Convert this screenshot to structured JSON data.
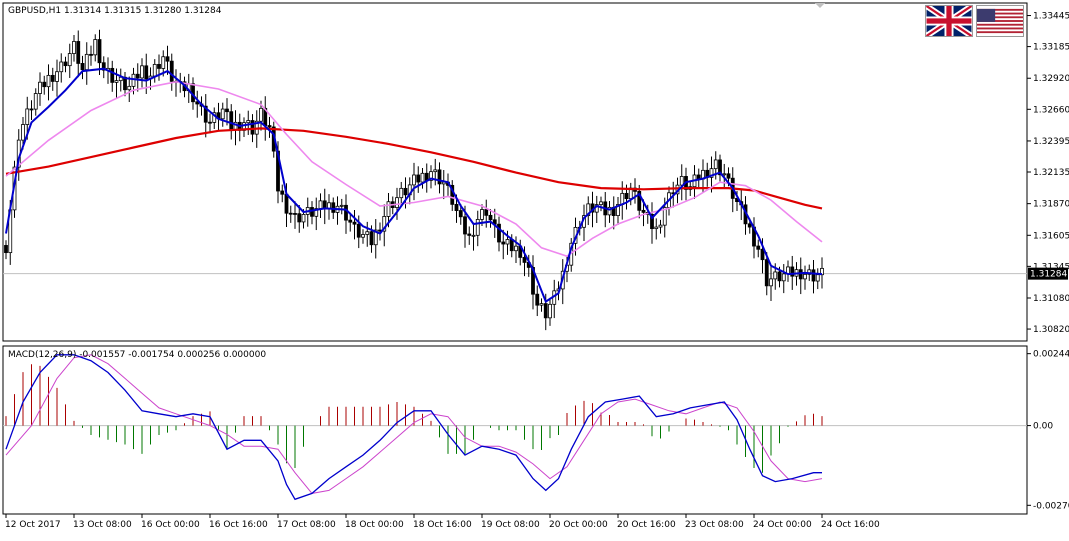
{
  "chart_data": [
    {
      "type": "candlestick",
      "title": "GBPUSD,H1  1.31314 1.31315 1.31280 1.31284",
      "symbol": "GBPUSD",
      "timeframe": "H1",
      "ohlc_header": {
        "open": 1.31314,
        "high": 1.31315,
        "low": 1.3128,
        "close": 1.31284
      },
      "current_price": "1.31284",
      "price_axis_ticks": [
        "1.33445",
        "1.33185",
        "1.32920",
        "1.32660",
        "1.32395",
        "1.32135",
        "1.31870",
        "1.31605",
        "1.31345",
        "1.31080",
        "1.30820"
      ],
      "ylim": [
        1.3072,
        1.3355
      ],
      "x_tick_labels": [
        "12 Oct 2017",
        "13 Oct 08:00",
        "16 Oct 00:00",
        "16 Oct 16:00",
        "17 Oct 08:00",
        "18 Oct 00:00",
        "18 Oct 16:00",
        "19 Oct 08:00",
        "20 Oct 00:00",
        "20 Oct 16:00",
        "23 Oct 08:00",
        "24 Oct 00:00",
        "24 Oct 16:00"
      ],
      "series_colors": {
        "fast_ma": "#0000cc",
        "medium_ma": "#ee88ee",
        "slow_ma": "#dd0000",
        "candle": "#000000"
      },
      "close_path": [
        [
          0,
          1.3152
        ],
        [
          3,
          1.3245
        ],
        [
          7,
          1.3278
        ],
        [
          10,
          1.3292
        ],
        [
          13,
          1.3302
        ],
        [
          16,
          1.3318
        ],
        [
          18,
          1.3298
        ],
        [
          21,
          1.3322
        ],
        [
          23,
          1.33
        ],
        [
          26,
          1.329
        ],
        [
          29,
          1.3284
        ],
        [
          32,
          1.33
        ],
        [
          34,
          1.3295
        ],
        [
          37,
          1.331
        ],
        [
          39,
          1.3293
        ],
        [
          41,
          1.3283
        ],
        [
          43,
          1.3285
        ],
        [
          46,
          1.3265
        ],
        [
          48,
          1.3255
        ],
        [
          51,
          1.3265
        ],
        [
          53,
          1.3251
        ],
        [
          56,
          1.3256
        ],
        [
          58,
          1.325
        ],
        [
          60,
          1.3262
        ],
        [
          62,
          1.325
        ],
        [
          64,
          1.32
        ],
        [
          66,
          1.3185
        ],
        [
          68,
          1.3175
        ],
        [
          70,
          1.3178
        ],
        [
          72,
          1.318
        ],
        [
          75,
          1.3185
        ],
        [
          78,
          1.3186
        ],
        [
          80,
          1.3178
        ],
        [
          82,
          1.3165
        ],
        [
          84,
          1.316
        ],
        [
          86,
          1.3155
        ],
        [
          88,
          1.317
        ],
        [
          90,
          1.3185
        ],
        [
          92,
          1.3192
        ],
        [
          94,
          1.3198
        ],
        [
          96,
          1.3205
        ],
        [
          98,
          1.321
        ],
        [
          100,
          1.3215
        ],
        [
          103,
          1.3205
        ],
        [
          105,
          1.319
        ],
        [
          107,
          1.317
        ],
        [
          109,
          1.3158
        ],
        [
          111,
          1.3175
        ],
        [
          113,
          1.3182
        ],
        [
          115,
          1.3165
        ],
        [
          117,
          1.3152
        ],
        [
          119,
          1.315
        ],
        [
          121,
          1.3148
        ],
        [
          123,
          1.313
        ],
        [
          125,
          1.3102
        ],
        [
          127,
          1.3095
        ],
        [
          129,
          1.3108
        ],
        [
          131,
          1.3128
        ],
        [
          133,
          1.3155
        ],
        [
          135,
          1.3172
        ],
        [
          137,
          1.3182
        ],
        [
          139,
          1.3185
        ],
        [
          141,
          1.318
        ],
        [
          143,
          1.3183
        ],
        [
          145,
          1.3192
        ],
        [
          147,
          1.32
        ],
        [
          149,
          1.3185
        ],
        [
          151,
          1.3172
        ],
        [
          153,
          1.3165
        ],
        [
          155,
          1.3185
        ],
        [
          157,
          1.32
        ],
        [
          159,
          1.3205
        ],
        [
          161,
          1.32
        ],
        [
          163,
          1.321
        ],
        [
          165,
          1.3215
        ],
        [
          167,
          1.322
        ],
        [
          169,
          1.3212
        ],
        [
          171,
          1.3195
        ],
        [
          173,
          1.318
        ],
        [
          175,
          1.3165
        ],
        [
          177,
          1.315
        ],
        [
          179,
          1.3123
        ],
        [
          181,
          1.3125
        ],
        [
          184,
          1.3128
        ],
        [
          187,
          1.313
        ],
        [
          190,
          1.3127
        ],
        [
          192,
          1.3128
        ]
      ],
      "moving_averages": {
        "fast": [
          [
            0,
            1.3162
          ],
          [
            3,
            1.3225
          ],
          [
            6,
            1.3255
          ],
          [
            10,
            1.3268
          ],
          [
            14,
            1.3282
          ],
          [
            18,
            1.3298
          ],
          [
            23,
            1.33
          ],
          [
            28,
            1.3292
          ],
          [
            33,
            1.329
          ],
          [
            38,
            1.3298
          ],
          [
            42,
            1.3286
          ],
          [
            46,
            1.327
          ],
          [
            50,
            1.3258
          ],
          [
            55,
            1.3252
          ],
          [
            60,
            1.3255
          ],
          [
            63,
            1.3245
          ],
          [
            66,
            1.3195
          ],
          [
            70,
            1.318
          ],
          [
            75,
            1.3183
          ],
          [
            80,
            1.3182
          ],
          [
            84,
            1.3168
          ],
          [
            88,
            1.3162
          ],
          [
            92,
            1.318
          ],
          [
            96,
            1.32
          ],
          [
            100,
            1.3208
          ],
          [
            104,
            1.3205
          ],
          [
            107,
            1.3185
          ],
          [
            110,
            1.317
          ],
          [
            114,
            1.3172
          ],
          [
            118,
            1.316
          ],
          [
            121,
            1.3152
          ],
          [
            124,
            1.3132
          ],
          [
            127,
            1.3105
          ],
          [
            130,
            1.3112
          ],
          [
            133,
            1.315
          ],
          [
            136,
            1.3175
          ],
          [
            139,
            1.3185
          ],
          [
            142,
            1.3182
          ],
          [
            146,
            1.3188
          ],
          [
            149,
            1.3195
          ],
          [
            152,
            1.3175
          ],
          [
            156,
            1.319
          ],
          [
            160,
            1.3205
          ],
          [
            164,
            1.3208
          ],
          [
            168,
            1.3213
          ],
          [
            171,
            1.32
          ],
          [
            174,
            1.318
          ],
          [
            177,
            1.316
          ],
          [
            180,
            1.3135
          ],
          [
            184,
            1.3128
          ],
          [
            188,
            1.3129
          ],
          [
            192,
            1.3128
          ]
        ],
        "medium": [
          [
            0,
            1.321
          ],
          [
            10,
            1.324
          ],
          [
            20,
            1.3265
          ],
          [
            30,
            1.3282
          ],
          [
            40,
            1.3289
          ],
          [
            50,
            1.3283
          ],
          [
            60,
            1.327
          ],
          [
            66,
            1.3245
          ],
          [
            72,
            1.3222
          ],
          [
            80,
            1.3203
          ],
          [
            88,
            1.3185
          ],
          [
            96,
            1.3188
          ],
          [
            104,
            1.3193
          ],
          [
            112,
            1.3185
          ],
          [
            120,
            1.317
          ],
          [
            126,
            1.315
          ],
          [
            132,
            1.3143
          ],
          [
            138,
            1.3158
          ],
          [
            144,
            1.317
          ],
          [
            150,
            1.3178
          ],
          [
            156,
            1.3183
          ],
          [
            162,
            1.3192
          ],
          [
            168,
            1.3205
          ],
          [
            174,
            1.3202
          ],
          [
            180,
            1.319
          ],
          [
            186,
            1.3172
          ],
          [
            192,
            1.3155
          ]
        ],
        "slow": [
          [
            0,
            1.3212
          ],
          [
            10,
            1.3218
          ],
          [
            20,
            1.3226
          ],
          [
            30,
            1.3234
          ],
          [
            40,
            1.3242
          ],
          [
            50,
            1.3248
          ],
          [
            60,
            1.325
          ],
          [
            70,
            1.3248
          ],
          [
            80,
            1.3243
          ],
          [
            90,
            1.3237
          ],
          [
            100,
            1.323
          ],
          [
            110,
            1.3222
          ],
          [
            120,
            1.3213
          ],
          [
            130,
            1.3205
          ],
          [
            140,
            1.32
          ],
          [
            150,
            1.3199
          ],
          [
            160,
            1.32
          ],
          [
            170,
            1.32
          ],
          [
            176,
            1.3198
          ],
          [
            182,
            1.3192
          ],
          [
            188,
            1.3186
          ],
          [
            192,
            1.3183
          ]
        ]
      }
    },
    {
      "type": "macd",
      "title": "MACD(12,26,9) -0.001557 -0.001754 0.000256 0.000000",
      "params": "12,26,9",
      "values": {
        "main": "-0.001557",
        "signal": "-0.001754",
        "histogram_osma": "0.000256",
        "zero": "0.000000"
      },
      "y_axis_ticks": [
        "0.00244",
        "0.00",
        "-0.002705"
      ],
      "ylim": [
        -0.003,
        0.0027
      ],
      "series_colors": {
        "main": "#0000cc",
        "signal": "#cc44cc",
        "hist_pos": "#aa0000",
        "hist_neg": "#007700"
      },
      "main_path": [
        [
          0,
          -0.0008
        ],
        [
          4,
          0.0008
        ],
        [
          8,
          0.0018
        ],
        [
          12,
          0.0024
        ],
        [
          16,
          0.0024
        ],
        [
          20,
          0.0022
        ],
        [
          24,
          0.0018
        ],
        [
          28,
          0.0012
        ],
        [
          32,
          0.0005
        ],
        [
          36,
          0.0004
        ],
        [
          40,
          0.0003
        ],
        [
          44,
          0.0004
        ],
        [
          48,
          0.0003
        ],
        [
          52,
          -0.0008
        ],
        [
          56,
          -0.0005
        ],
        [
          60,
          -0.0005
        ],
        [
          64,
          -0.0012
        ],
        [
          66,
          -0.002
        ],
        [
          68,
          -0.0025
        ],
        [
          72,
          -0.0023
        ],
        [
          76,
          -0.0018
        ],
        [
          80,
          -0.0014
        ],
        [
          84,
          -0.001
        ],
        [
          88,
          -0.0005
        ],
        [
          92,
          0.0001
        ],
        [
          96,
          0.0005
        ],
        [
          100,
          0.0005
        ],
        [
          104,
          -0.0003
        ],
        [
          108,
          -0.001
        ],
        [
          112,
          -0.0007
        ],
        [
          116,
          -0.0008
        ],
        [
          120,
          -0.001
        ],
        [
          124,
          -0.0018
        ],
        [
          127,
          -0.0022
        ],
        [
          130,
          -0.0018
        ],
        [
          133,
          -0.0008
        ],
        [
          137,
          0.0003
        ],
        [
          141,
          0.0008
        ],
        [
          145,
          0.0009
        ],
        [
          149,
          0.001
        ],
        [
          153,
          0.0003
        ],
        [
          157,
          0.0004
        ],
        [
          161,
          0.0006
        ],
        [
          165,
          0.0007
        ],
        [
          169,
          0.0008
        ],
        [
          172,
          0.0002
        ],
        [
          175,
          -0.0008
        ],
        [
          178,
          -0.0017
        ],
        [
          181,
          -0.0019
        ],
        [
          185,
          -0.0018
        ],
        [
          190,
          -0.0016
        ],
        [
          192,
          -0.0016
        ]
      ],
      "signal_path": [
        [
          0,
          -0.001
        ],
        [
          6,
          0.0
        ],
        [
          12,
          0.0016
        ],
        [
          16,
          0.0023
        ],
        [
          20,
          0.0024
        ],
        [
          24,
          0.0021
        ],
        [
          28,
          0.0016
        ],
        [
          32,
          0.0011
        ],
        [
          36,
          0.0006
        ],
        [
          40,
          0.0004
        ],
        [
          44,
          0.0002
        ],
        [
          48,
          0.0
        ],
        [
          52,
          -0.0003
        ],
        [
          56,
          -0.0007
        ],
        [
          60,
          -0.0007
        ],
        [
          64,
          -0.0008
        ],
        [
          68,
          -0.0016
        ],
        [
          72,
          -0.0023
        ],
        [
          76,
          -0.0022
        ],
        [
          80,
          -0.0018
        ],
        [
          84,
          -0.0014
        ],
        [
          88,
          -0.0009
        ],
        [
          92,
          -0.0004
        ],
        [
          96,
          0.0001
        ],
        [
          100,
          0.0004
        ],
        [
          104,
          0.0003
        ],
        [
          108,
          -0.0004
        ],
        [
          112,
          -0.0007
        ],
        [
          116,
          -0.0007
        ],
        [
          120,
          -0.0009
        ],
        [
          124,
          -0.0013
        ],
        [
          128,
          -0.0018
        ],
        [
          132,
          -0.0014
        ],
        [
          136,
          -0.0005
        ],
        [
          140,
          0.0004
        ],
        [
          144,
          0.0008
        ],
        [
          148,
          0.0009
        ],
        [
          152,
          0.0007
        ],
        [
          156,
          0.0005
        ],
        [
          160,
          0.0004
        ],
        [
          164,
          0.0006
        ],
        [
          168,
          0.0008
        ],
        [
          172,
          0.0006
        ],
        [
          176,
          -0.0002
        ],
        [
          180,
          -0.0012
        ],
        [
          184,
          -0.0018
        ],
        [
          188,
          -0.0019
        ],
        [
          192,
          -0.0018
        ]
      ]
    }
  ]
}
